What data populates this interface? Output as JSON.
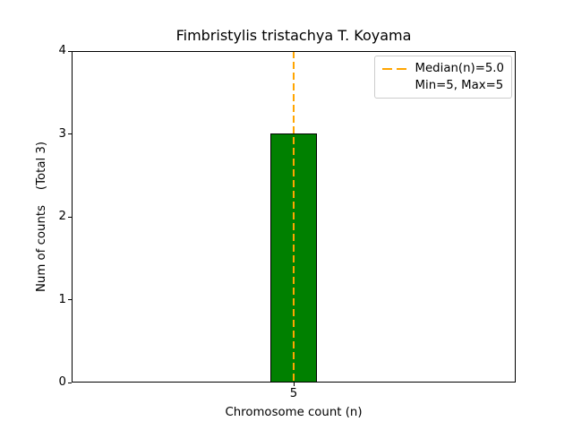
{
  "chart_data": {
    "type": "bar",
    "title": "Fimbristylis tristachya T. Koyama",
    "xlabel": "Chromosome count (n)",
    "ylabel": "Num of counts    (Total 3)",
    "categories": [
      "5"
    ],
    "values": [
      3
    ],
    "total_counts": 3,
    "ylim": [
      0,
      4
    ],
    "yticks": [
      0,
      1,
      2,
      3,
      4
    ],
    "xticks": [
      "5"
    ],
    "bar_color": "#008000",
    "bar_edge_color": "#000000",
    "background_color": "#ffffff",
    "grid": false,
    "median_line": {
      "x": 5.0,
      "color": "#ffa500",
      "style": "dashed",
      "orientation": "vertical"
    },
    "legend": {
      "position": "upper-right",
      "entries": [
        {
          "swatch": "dashed-line",
          "color": "#ffa500",
          "label": "Median(n)=5.0"
        },
        {
          "swatch": "none",
          "color": "",
          "label": "Min=5, Max=5"
        }
      ]
    }
  }
}
